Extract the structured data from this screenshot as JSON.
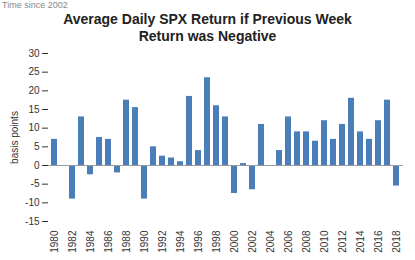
{
  "chart_data": {
    "type": "bar",
    "title": "Average Daily SPX Return if Previous Week Return was Negative",
    "annotations": [
      "Time since 2002"
    ],
    "y_label": "basis points",
    "categories": [
      "1980",
      null,
      "1982",
      null,
      "1984",
      null,
      "1986",
      null,
      "1988",
      null,
      "1990",
      null,
      "1992",
      null,
      "1994",
      null,
      "1996",
      null,
      "1998",
      null,
      "2000",
      null,
      "2002",
      null,
      "2004",
      null,
      "2006",
      null,
      "2008",
      null,
      "2010",
      null,
      "2012",
      null,
      "2014",
      null,
      "2016",
      null,
      "2018"
    ],
    "values": [
      7,
      0,
      -9,
      13,
      -2.5,
      7.5,
      7,
      -2,
      17.5,
      15.5,
      -9,
      5,
      2.5,
      2,
      1,
      18.5,
      4,
      23.5,
      16,
      13,
      -7.5,
      0.5,
      -6.5,
      11,
      0,
      4,
      13,
      9,
      9,
      6.5,
      12,
      7,
      11,
      18,
      9,
      7,
      12,
      17.5,
      -5.5
    ],
    "color": "#4a7ebb",
    "ylim": [
      -15,
      30
    ],
    "yticks": [
      -15,
      -10,
      -5,
      0,
      5,
      10,
      15,
      20,
      25,
      30
    ],
    "grid": false
  }
}
